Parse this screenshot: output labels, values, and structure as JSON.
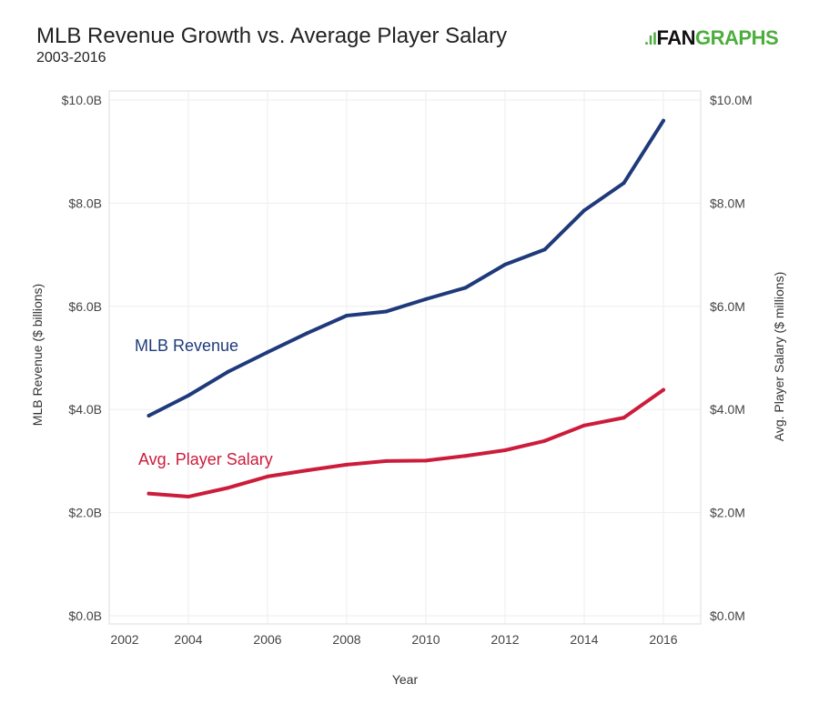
{
  "header": {
    "title": "MLB Revenue Growth vs. Average Player Salary",
    "subtitle": "2003-2016",
    "logo": "FANGRAPHS"
  },
  "colors": {
    "revenue": "#1f3a7a",
    "salary": "#cc1c3b",
    "logo_green": "#4cae3d"
  },
  "chart_data": {
    "type": "line",
    "xlabel": "Year",
    "ylabel_left": "MLB Revenue ($ billions)",
    "ylabel_right": "Avg. Player Salary ($ millions)",
    "xlim": [
      2002,
      2017
    ],
    "ylim": [
      0,
      10
    ],
    "x_ticks": [
      "2002",
      "2004",
      "2006",
      "2008",
      "2010",
      "2012",
      "2014",
      "2016"
    ],
    "y_ticks_left": [
      "$0.0B",
      "$2.0B",
      "$4.0B",
      "$6.0B",
      "$8.0B",
      "$10.0B"
    ],
    "y_ticks_right": [
      "$0.0M",
      "$2.0M",
      "$4.0M",
      "$6.0M",
      "$8.0M",
      "$10.0M"
    ],
    "grid": true,
    "x": [
      2003,
      2004,
      2005,
      2006,
      2007,
      2008,
      2009,
      2010,
      2011,
      2012,
      2013,
      2014,
      2015,
      2016
    ],
    "series": [
      {
        "name": "MLB Revenue",
        "axis": "left",
        "values": [
          3.88,
          4.27,
          4.73,
          5.11,
          5.48,
          5.82,
          5.9,
          6.14,
          6.36,
          6.81,
          7.1,
          7.86,
          8.39,
          9.6
        ]
      },
      {
        "name": "Avg. Player Salary",
        "axis": "right",
        "values": [
          2.37,
          2.31,
          2.48,
          2.7,
          2.82,
          2.93,
          3.0,
          3.01,
          3.1,
          3.21,
          3.39,
          3.69,
          3.84,
          4.38
        ]
      }
    ]
  }
}
